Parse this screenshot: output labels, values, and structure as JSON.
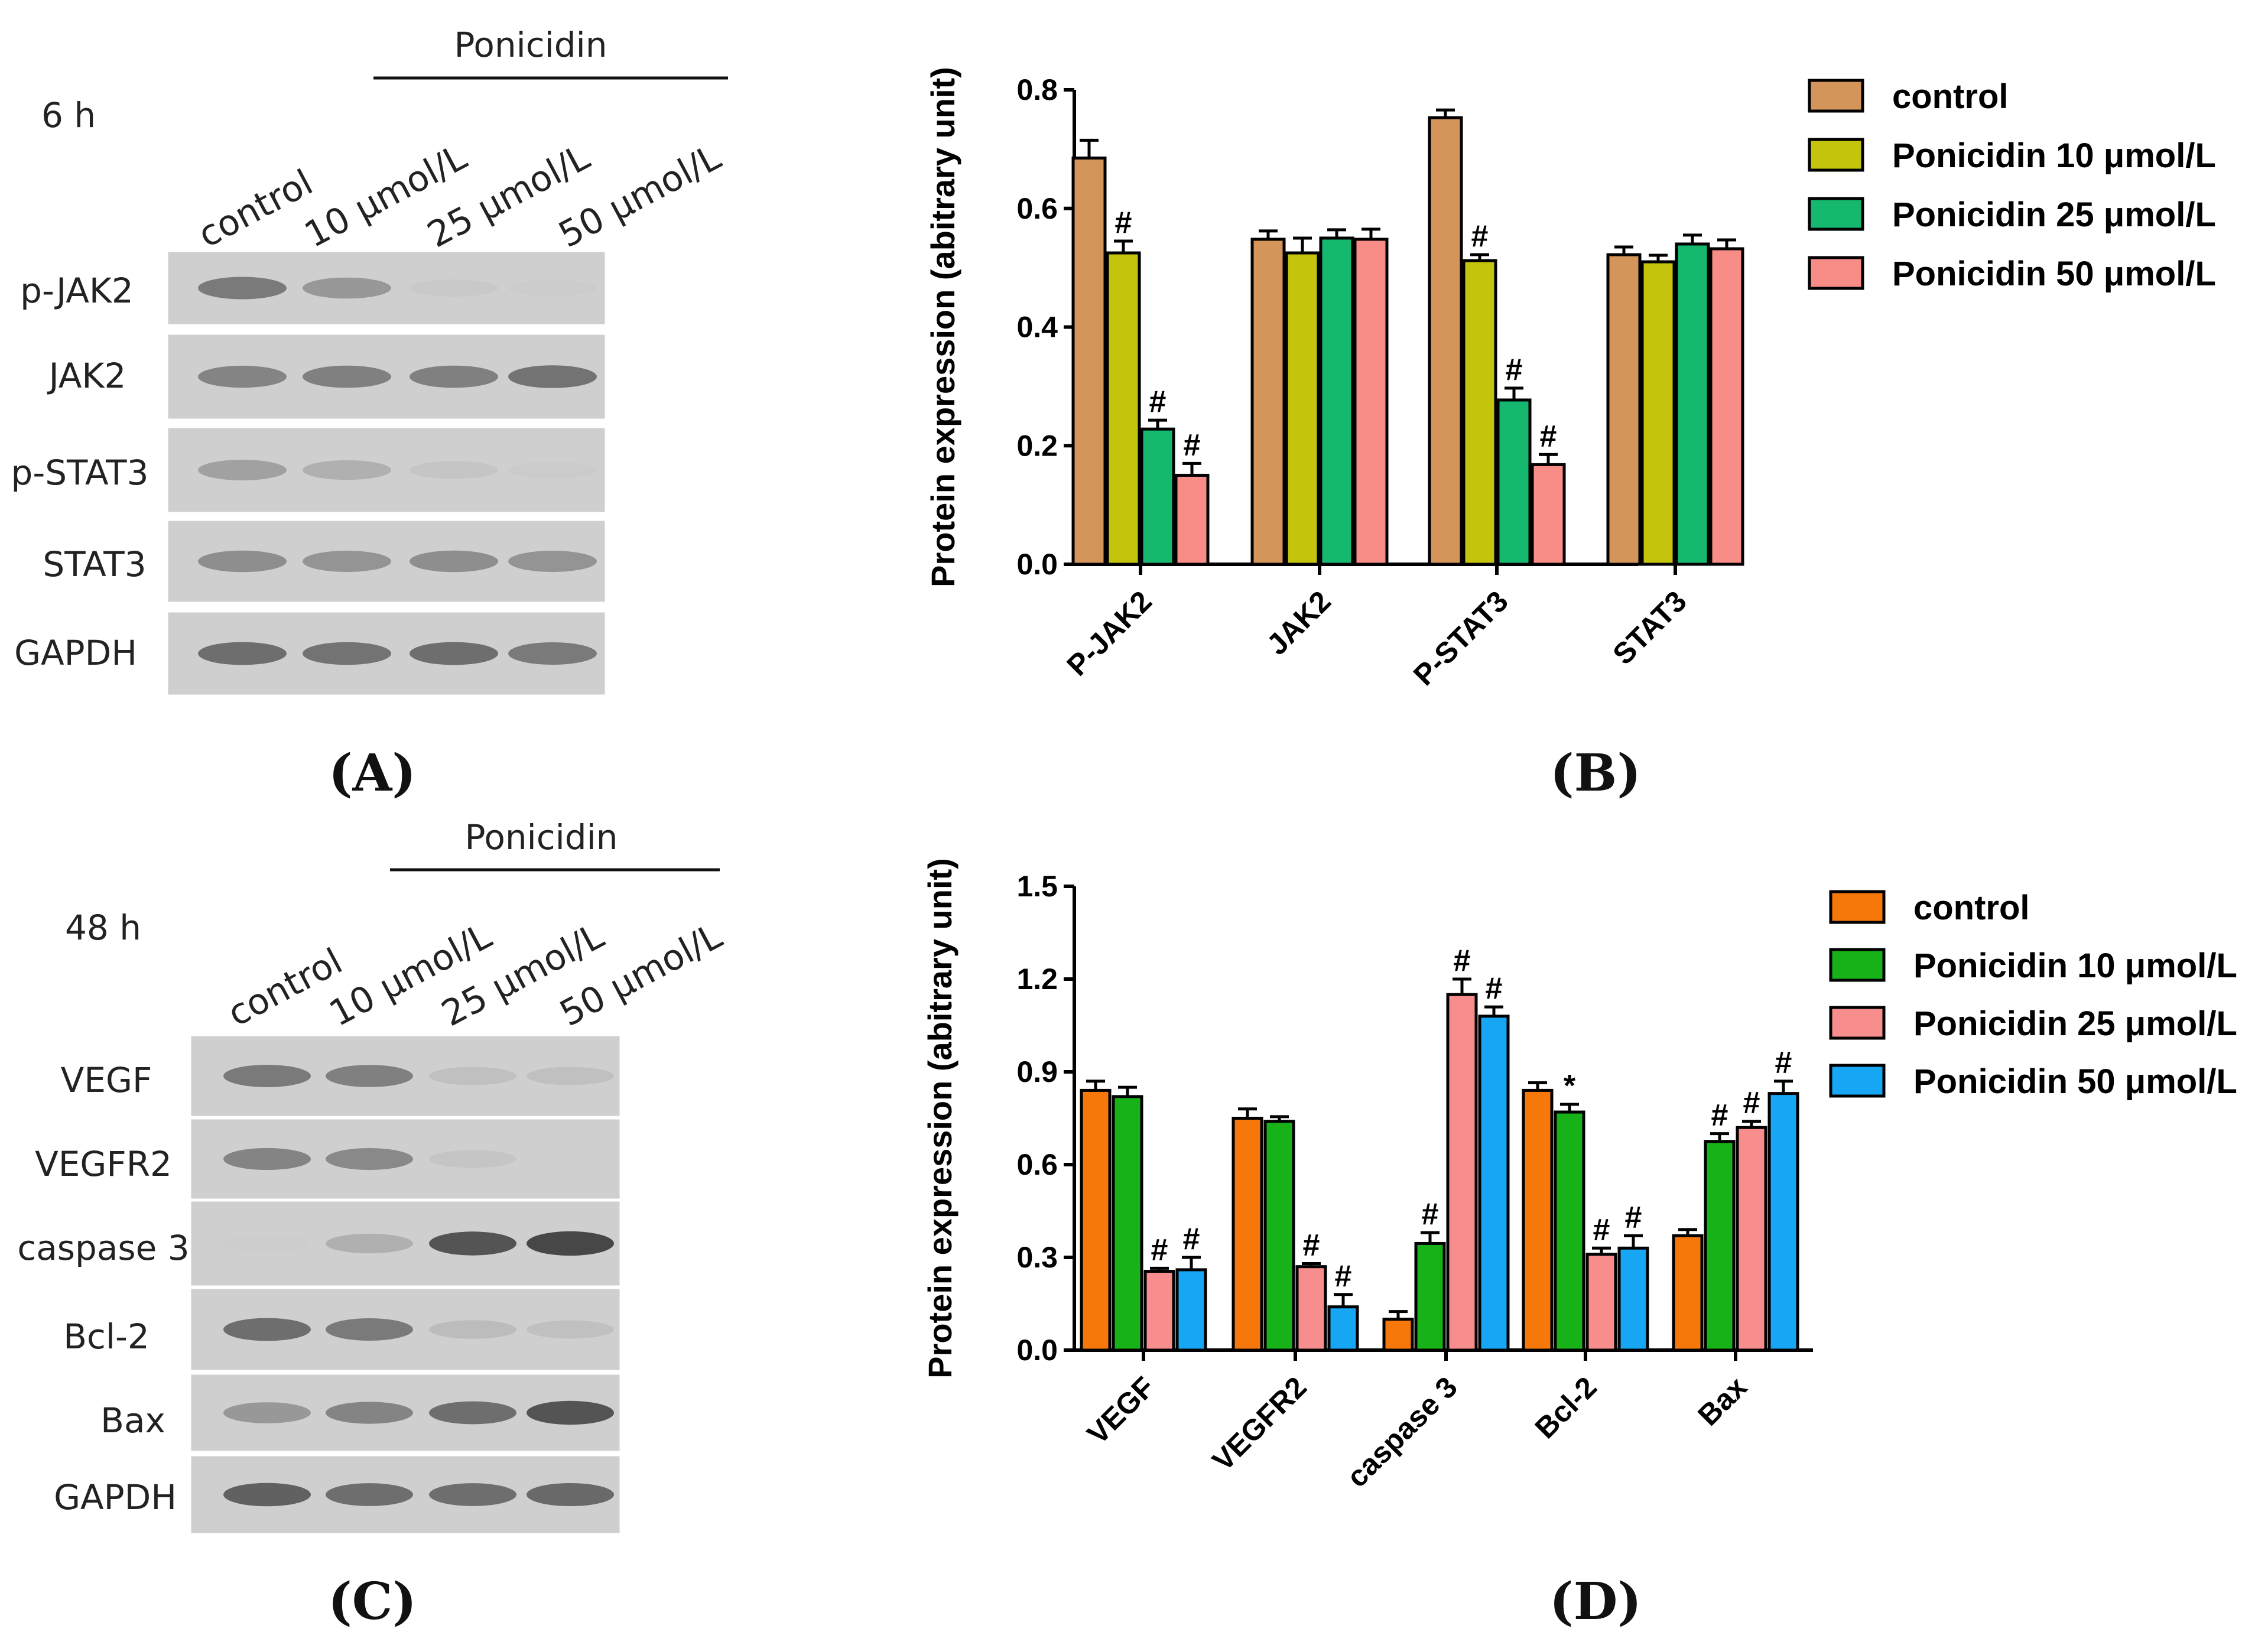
{
  "panels": {
    "A": {
      "letter": "(A)",
      "time": "6 h",
      "treatment": "Ponicidin",
      "lanes": [
        "control",
        "10 μmol/L",
        "25 μmol/L",
        "50 μmol/L"
      ],
      "rows": [
        "p-JAK2",
        "JAK2",
        "p-STAT3",
        "STAT3",
        "GAPDH"
      ],
      "intensity": [
        [
          0.75,
          0.6,
          0.18,
          0.1
        ],
        [
          0.7,
          0.72,
          0.72,
          0.78
        ],
        [
          0.55,
          0.45,
          0.25,
          0.15
        ],
        [
          0.65,
          0.62,
          0.65,
          0.62
        ],
        [
          0.8,
          0.78,
          0.8,
          0.75
        ]
      ]
    },
    "C": {
      "letter": "(C)",
      "time": "48 h",
      "treatment": "Ponicidin",
      "lanes": [
        "control",
        "10 μmol/L",
        "25 μmol/L",
        "50 μmol/L"
      ],
      "rows": [
        "VEGF",
        "VEGFR2",
        "caspase 3",
        "Bcl-2",
        "Bax",
        "GAPDH"
      ],
      "intensity": [
        [
          0.75,
          0.72,
          0.3,
          0.3
        ],
        [
          0.7,
          0.68,
          0.25,
          0.05
        ],
        [
          0.08,
          0.45,
          0.9,
          0.95
        ],
        [
          0.8,
          0.75,
          0.35,
          0.3
        ],
        [
          0.6,
          0.7,
          0.8,
          0.9
        ],
        [
          0.85,
          0.8,
          0.8,
          0.82
        ]
      ]
    }
  },
  "chart_data": [
    {
      "id": "B",
      "letter": "(B)",
      "type": "bar",
      "ylabel": "Protein expression (abitrary unit)",
      "ylim": [
        0,
        0.8
      ],
      "yticks": [
        "0.0",
        "0.2",
        "0.4",
        "0.6",
        "0.8"
      ],
      "categories": [
        "P-JAK2",
        "JAK2",
        "P-STAT3",
        "STAT3"
      ],
      "series": [
        {
          "name": "control",
          "color": "#D4955B",
          "values": [
            0.685,
            0.548,
            0.753,
            0.522
          ],
          "errors": [
            0.03,
            0.014,
            0.013,
            0.013
          ],
          "marks": [
            "",
            "",
            "",
            ""
          ]
        },
        {
          "name": "Ponicidin 10 μmol/L",
          "color": "#C4C40C",
          "values": [
            0.525,
            0.525,
            0.512,
            0.51
          ],
          "errors": [
            0.02,
            0.025,
            0.01,
            0.011
          ],
          "marks": [
            "#",
            "",
            "#",
            ""
          ]
        },
        {
          "name": "Ponicidin 25 μmol/L",
          "color": "#15B86E",
          "values": [
            0.228,
            0.55,
            0.277,
            0.54
          ],
          "errors": [
            0.015,
            0.014,
            0.02,
            0.015
          ],
          "marks": [
            "#",
            "",
            "#",
            ""
          ]
        },
        {
          "name": "Ponicidin 50 μmol/L",
          "color": "#F88D87",
          "values": [
            0.15,
            0.548,
            0.168,
            0.532
          ],
          "errors": [
            0.02,
            0.017,
            0.017,
            0.015
          ],
          "marks": [
            "#",
            "",
            "#",
            ""
          ]
        }
      ]
    },
    {
      "id": "D",
      "letter": "(D)",
      "type": "bar",
      "ylabel": "Protein expression (abitrary unit)",
      "ylim": [
        0,
        1.5
      ],
      "yticks": [
        "0.0",
        "0.3",
        "0.6",
        "0.9",
        "1.2",
        "1.5"
      ],
      "categories": [
        "VEGF",
        "VEGFR2",
        "caspase 3",
        "Bcl-2",
        "Bax"
      ],
      "series": [
        {
          "name": "control",
          "color": "#F7780A",
          "values": [
            0.84,
            0.75,
            0.1,
            0.84,
            0.37
          ],
          "errors": [
            0.03,
            0.03,
            0.025,
            0.025,
            0.02
          ],
          "marks": [
            "",
            "",
            "",
            "",
            ""
          ]
        },
        {
          "name": "Ponicidin 10 μmol/L",
          "color": "#16B217",
          "values": [
            0.82,
            0.74,
            0.345,
            0.77,
            0.675
          ],
          "errors": [
            0.03,
            0.015,
            0.035,
            0.025,
            0.025
          ],
          "marks": [
            "",
            "",
            "#",
            "*",
            "#"
          ]
        },
        {
          "name": "Ponicidin 25 μmol/L",
          "color": "#F88D8E",
          "values": [
            0.255,
            0.27,
            1.15,
            0.31,
            0.72
          ],
          "errors": [
            0.01,
            0.01,
            0.05,
            0.02,
            0.02
          ],
          "marks": [
            "#",
            "#",
            "#",
            "#",
            "#"
          ]
        },
        {
          "name": "Ponicidin 50 μmol/L",
          "color": "#16A6F4",
          "values": [
            0.26,
            0.14,
            1.08,
            0.33,
            0.83
          ],
          "errors": [
            0.04,
            0.04,
            0.03,
            0.04,
            0.04
          ],
          "marks": [
            "#",
            "#",
            "#",
            "#",
            "#"
          ]
        }
      ]
    }
  ]
}
